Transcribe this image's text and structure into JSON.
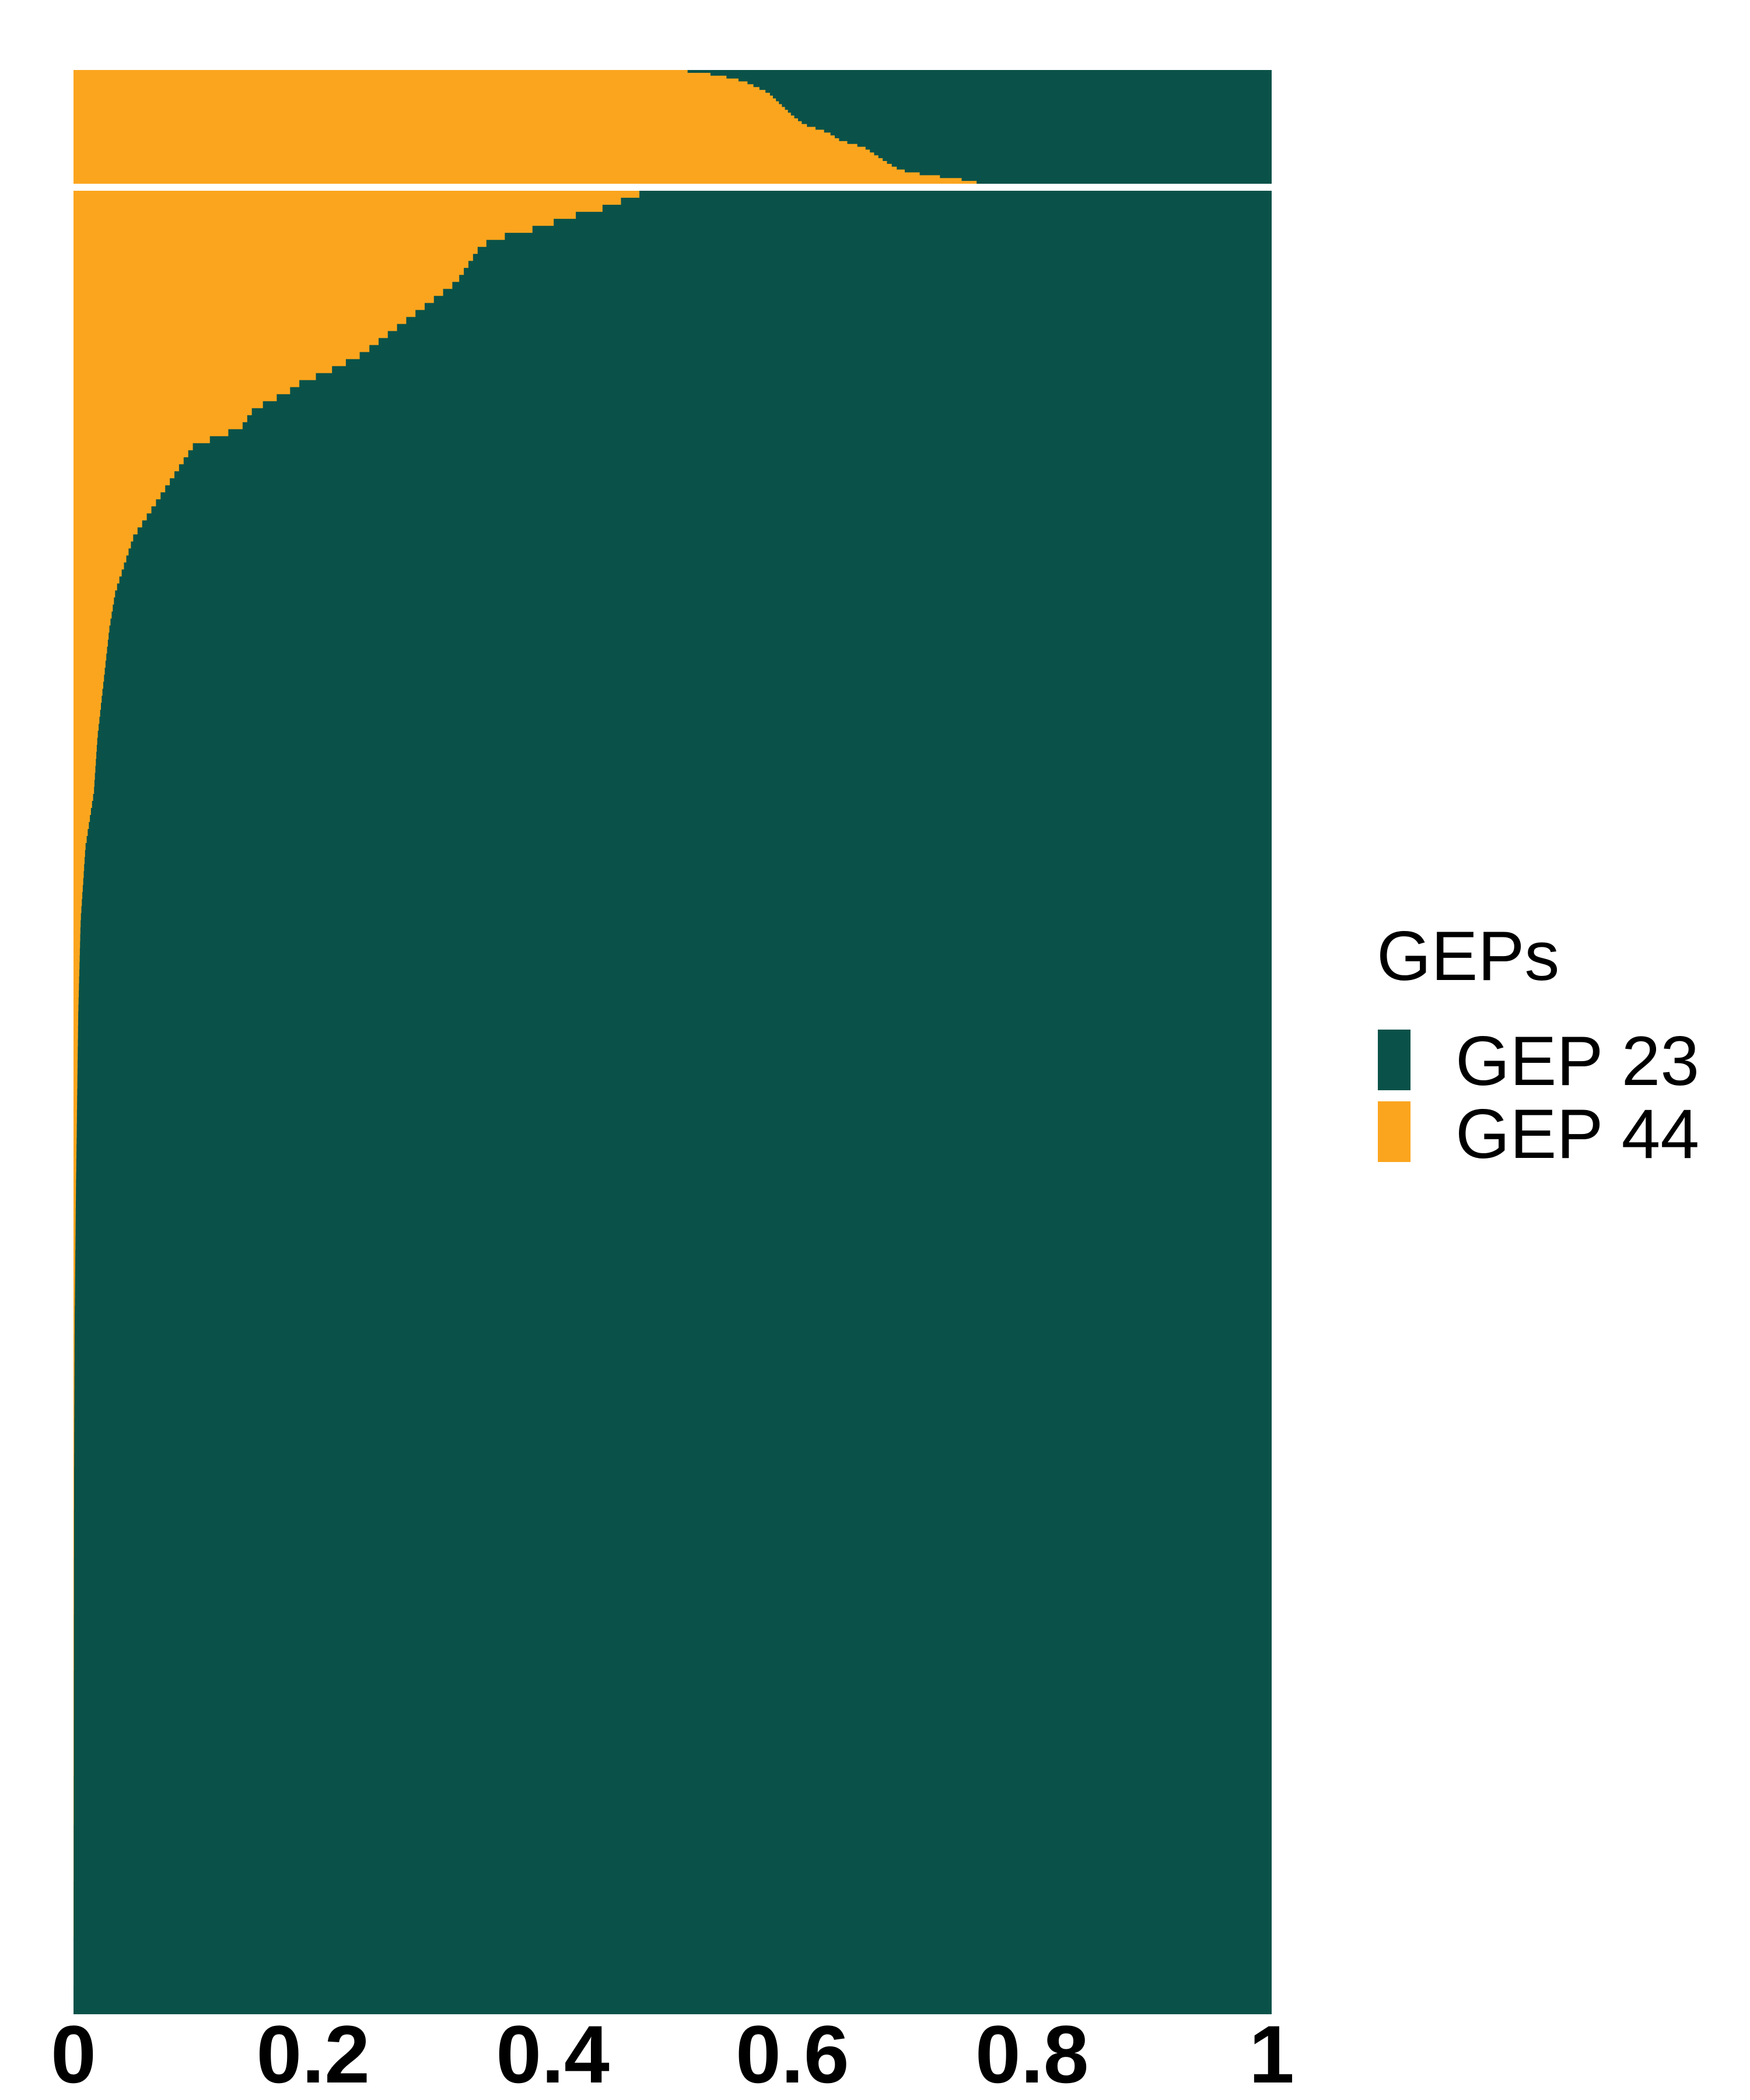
{
  "chart_data": {
    "type": "area",
    "orientation": "horizontal-stacked",
    "xlim": [
      0,
      1
    ],
    "x_ticks": [
      "0",
      "0.2",
      "0.4",
      "0.6",
      "0.8",
      "1"
    ],
    "x_tick_values": [
      0,
      0.2,
      0.4,
      0.6,
      0.8,
      1
    ],
    "grid": false,
    "legend": {
      "title": "GEPs",
      "placement": "right",
      "entries": [
        {
          "label": "GEP 23",
          "color": "#0A5249"
        },
        {
          "label": "GEP 44",
          "color": "#FBA51E"
        }
      ]
    },
    "series": [
      {
        "name": "GEP 44",
        "color": "#FBA51E"
      },
      {
        "name": "GEP 23",
        "color": "#0A5249"
      }
    ],
    "groups": [
      {
        "order": 1,
        "description_values": "GEP 44 proportion per cell (row position from top 0 to bottom 1)",
        "profile": [
          [
            0.0,
            0.5
          ],
          [
            0.02,
            0.52
          ],
          [
            0.05,
            0.54
          ],
          [
            0.1,
            0.56
          ],
          [
            0.15,
            0.57
          ],
          [
            0.2,
            0.58
          ],
          [
            0.3,
            0.59
          ],
          [
            0.4,
            0.6
          ],
          [
            0.48,
            0.61
          ],
          [
            0.55,
            0.63
          ],
          [
            0.62,
            0.64
          ],
          [
            0.68,
            0.66
          ],
          [
            0.75,
            0.67
          ],
          [
            0.82,
            0.68
          ],
          [
            0.88,
            0.69
          ],
          [
            0.92,
            0.71
          ],
          [
            0.96,
            0.74
          ],
          [
            1.0,
            0.76
          ]
        ]
      },
      {
        "order": 2,
        "description_values": "GEP 44 proportion per cell (row position from top 0 to bottom 1)",
        "profile": [
          [
            0.0,
            0.48
          ],
          [
            0.005,
            0.46
          ],
          [
            0.01,
            0.44
          ],
          [
            0.015,
            0.41
          ],
          [
            0.02,
            0.39
          ],
          [
            0.025,
            0.36
          ],
          [
            0.03,
            0.34
          ],
          [
            0.04,
            0.33
          ],
          [
            0.05,
            0.32
          ],
          [
            0.06,
            0.3
          ],
          [
            0.07,
            0.28
          ],
          [
            0.08,
            0.26
          ],
          [
            0.09,
            0.24
          ],
          [
            0.1,
            0.21
          ],
          [
            0.105,
            0.19
          ],
          [
            0.11,
            0.18
          ],
          [
            0.12,
            0.15
          ],
          [
            0.13,
            0.14
          ],
          [
            0.14,
            0.1
          ],
          [
            0.15,
            0.09
          ],
          [
            0.16,
            0.08
          ],
          [
            0.17,
            0.07
          ],
          [
            0.18,
            0.06
          ],
          [
            0.19,
            0.05
          ],
          [
            0.2,
            0.045
          ],
          [
            0.22,
            0.035
          ],
          [
            0.24,
            0.03
          ],
          [
            0.27,
            0.025
          ],
          [
            0.3,
            0.02
          ],
          [
            0.33,
            0.017
          ],
          [
            0.36,
            0.01
          ],
          [
            0.4,
            0.006
          ],
          [
            0.45,
            0.004
          ],
          [
            0.5,
            0.003
          ],
          [
            0.55,
            0.002
          ],
          [
            0.62,
            0.001
          ],
          [
            0.7,
            0.0005
          ],
          [
            1.0,
            0.0
          ]
        ]
      }
    ]
  }
}
